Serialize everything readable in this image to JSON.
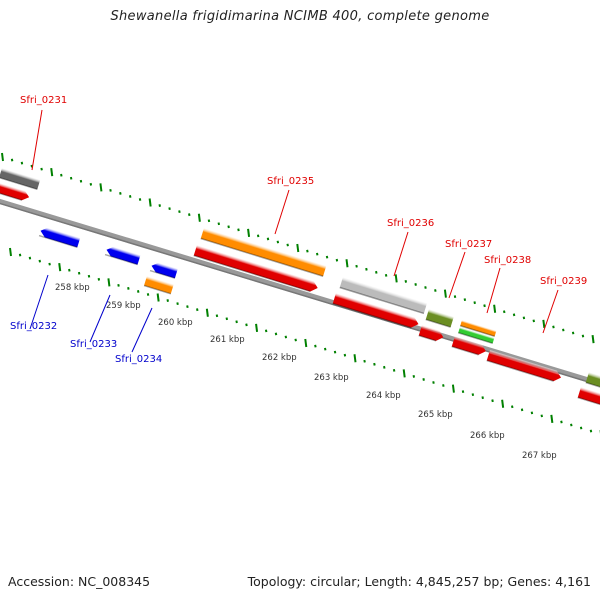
{
  "title": "Shewanella frigidimarina NCIMB 400, complete genome",
  "footer": {
    "accession": "Accession: NC_008345",
    "topology": "Topology: circular; Length: 4,845,257 bp; Genes: 4,161"
  },
  "colors": {
    "forward_label": "#e00000",
    "reverse_label": "#0000cc",
    "tick": "#008000",
    "backbone": "#888888"
  },
  "ruler": {
    "labels": [
      "258 kbp",
      "259 kbp",
      "260 kbp",
      "261 kbp",
      "262 kbp",
      "263 kbp",
      "264 kbp",
      "265 kbp",
      "266 kbp",
      "267 kbp"
    ]
  },
  "gene_labels": [
    {
      "id": "Sfri_0231",
      "strand": "forward"
    },
    {
      "id": "Sfri_0232",
      "strand": "reverse"
    },
    {
      "id": "Sfri_0233",
      "strand": "reverse"
    },
    {
      "id": "Sfri_0234",
      "strand": "reverse"
    },
    {
      "id": "Sfri_0235",
      "strand": "forward"
    },
    {
      "id": "Sfri_0236",
      "strand": "forward"
    },
    {
      "id": "Sfri_0237",
      "strand": "forward"
    },
    {
      "id": "Sfri_0238",
      "strand": "forward"
    },
    {
      "id": "Sfri_0239",
      "strand": "forward"
    }
  ],
  "features": [
    {
      "type": "gene",
      "strand": "forward",
      "color": "#e00000"
    },
    {
      "type": "cog",
      "strand": "forward",
      "color": "#666666"
    },
    {
      "type": "gene",
      "strand": "reverse",
      "color": "#0000ee"
    },
    {
      "type": "gene",
      "strand": "reverse",
      "color": "#0000ee"
    },
    {
      "type": "gene",
      "strand": "reverse",
      "color": "#0000ee"
    },
    {
      "type": "cog",
      "strand": "reverse",
      "color": "#ff8c00"
    },
    {
      "type": "gene",
      "strand": "forward",
      "color": "#e00000"
    },
    {
      "type": "cog",
      "strand": "forward",
      "color": "#ff8c00"
    },
    {
      "type": "gene",
      "strand": "forward",
      "color": "#e00000"
    },
    {
      "type": "cog",
      "strand": "forward",
      "color": "#bbbbbb"
    },
    {
      "type": "gene",
      "strand": "forward",
      "color": "#e00000"
    },
    {
      "type": "cog",
      "strand": "forward",
      "color": "#6b8e23"
    },
    {
      "type": "gene",
      "strand": "forward",
      "color": "#e00000"
    },
    {
      "type": "cog",
      "strand": "forward",
      "color": "#ff8c00"
    },
    {
      "type": "cog",
      "strand": "forward",
      "color": "#33cc33"
    },
    {
      "type": "gene",
      "strand": "forward",
      "color": "#e00000"
    },
    {
      "type": "gene",
      "strand": "forward",
      "color": "#e00000"
    },
    {
      "type": "cog",
      "strand": "forward",
      "color": "#6b8e23"
    }
  ]
}
